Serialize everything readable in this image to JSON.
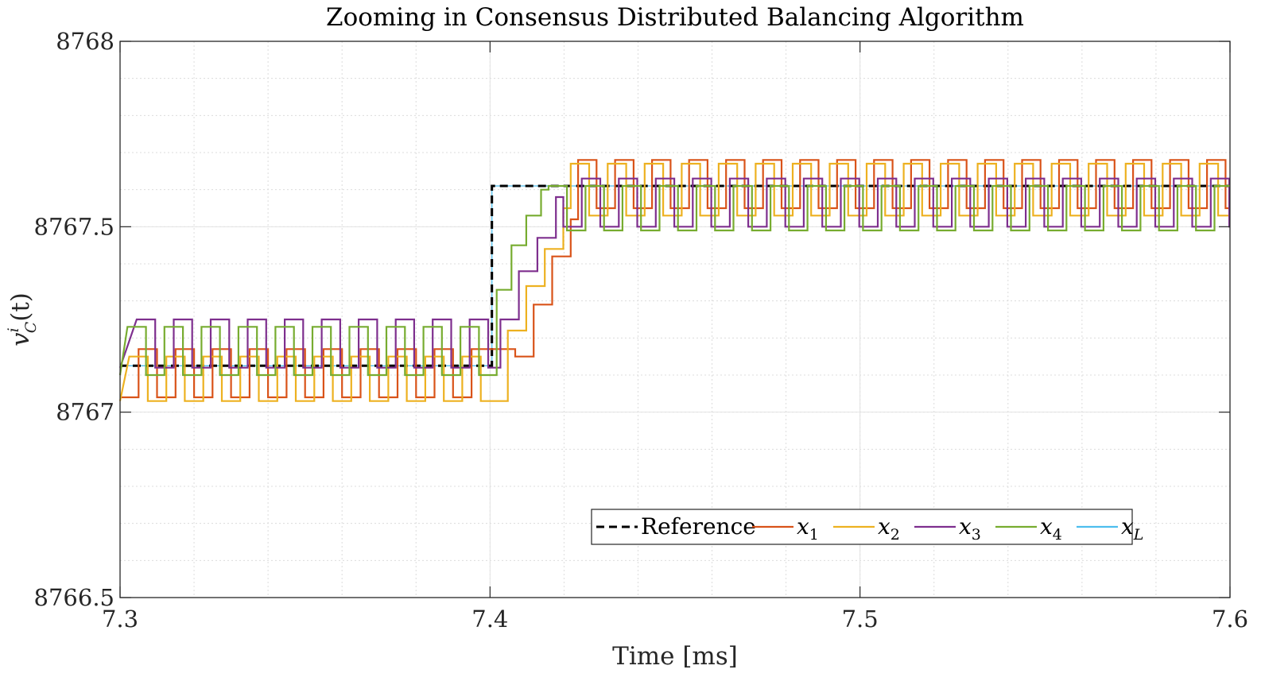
{
  "chart_data": {
    "type": "line",
    "title": "Zooming in Consensus Distributed Balancing Algorithm",
    "xlabel": "Time [ms]",
    "ylabel": "v_C^i(t)",
    "ylabel_main": "v",
    "ylabel_sup": "i",
    "ylabel_sub": "C",
    "ylabel_arg": "(t)",
    "xlim": [
      7.3,
      7.6
    ],
    "ylim": [
      8766.5,
      8768
    ],
    "xticks": [
      7.3,
      7.4,
      7.5,
      7.6
    ],
    "xtick_labels": [
      "7.3",
      "7.4",
      "7.5",
      "7.6"
    ],
    "yticks": [
      8766.5,
      8767,
      8767.5,
      8768
    ],
    "ytick_labels": [
      "8766.5",
      "8767",
      "8767.5",
      "8768"
    ],
    "grid": true,
    "minor_grid": true,
    "legend_placement": "bottom-right, horizontal",
    "step_time": 7.4,
    "switch_period_ms": 0.01,
    "series": [
      {
        "name": "Reference",
        "legend_label": "Reference",
        "legend_sub": "",
        "color": "#000000",
        "style": "dashed",
        "pre_level": 8767.125,
        "post_level": 8767.61,
        "ramp": [],
        "pre_toggle": [
          8767.125
        ],
        "post_toggle": [
          8767.61
        ],
        "phase": 0
      },
      {
        "name": "x_1",
        "legend_label": "x",
        "legend_sub": "1",
        "color": "#D95319",
        "style": "solid",
        "pre_level": 8767.1,
        "post_level": 8767.6,
        "ramp": [
          [
            7.4068,
            8767.15
          ],
          [
            7.4118,
            8767.29
          ],
          [
            7.4168,
            8767.42
          ],
          [
            7.4218,
            8767.52
          ]
        ],
        "pre_toggle": [
          8767.04,
          8767.17
        ],
        "post_toggle": [
          8767.68,
          8767.55
        ],
        "phase": 0
      },
      {
        "name": "x_2",
        "legend_label": "x",
        "legend_sub": "2",
        "color": "#EDB120",
        "style": "solid",
        "pre_level": 8767.1,
        "post_level": 8767.6,
        "ramp": [
          [
            7.4048,
            8767.22
          ],
          [
            7.4098,
            8767.34
          ],
          [
            7.4148,
            8767.44
          ],
          [
            7.4198,
            8767.55
          ]
        ],
        "pre_toggle": [
          8767.03,
          8767.15
        ],
        "post_toggle": [
          8767.67,
          8767.53
        ],
        "phase": 0.0025
      },
      {
        "name": "x_3",
        "legend_label": "x",
        "legend_sub": "3",
        "color": "#7E2F8E",
        "style": "solid",
        "pre_level": 8767.15,
        "post_level": 8767.56,
        "ramp": [
          [
            7.4028,
            8767.25
          ],
          [
            7.4078,
            8767.38
          ],
          [
            7.4128,
            8767.47
          ],
          [
            7.4178,
            8767.58
          ]
        ],
        "pre_toggle": [
          8767.12,
          8767.25
        ],
        "post_toggle": [
          8767.5,
          8767.63
        ],
        "phase": 0.0045
      },
      {
        "name": "x_4",
        "legend_label": "x",
        "legend_sub": "4",
        "color": "#77AC30",
        "style": "solid",
        "pre_level": 8767.15,
        "post_level": 8767.55,
        "ramp": [
          [
            7.4018,
            8767.33
          ],
          [
            7.4058,
            8767.45
          ],
          [
            7.4098,
            8767.53
          ],
          [
            7.4138,
            8767.6
          ]
        ],
        "pre_toggle": [
          8767.1,
          8767.23
        ],
        "post_toggle": [
          8767.61,
          8767.49
        ],
        "phase": 0.007
      },
      {
        "name": "x_L",
        "legend_label": "x",
        "legend_sub": "L",
        "color": "#4DBEEE",
        "style": "solid",
        "pre_level": 8767.125,
        "post_level": 8767.61,
        "ramp": [],
        "pre_toggle": [
          8767.125
        ],
        "post_toggle": [
          8767.61
        ],
        "phase": 0
      }
    ]
  }
}
